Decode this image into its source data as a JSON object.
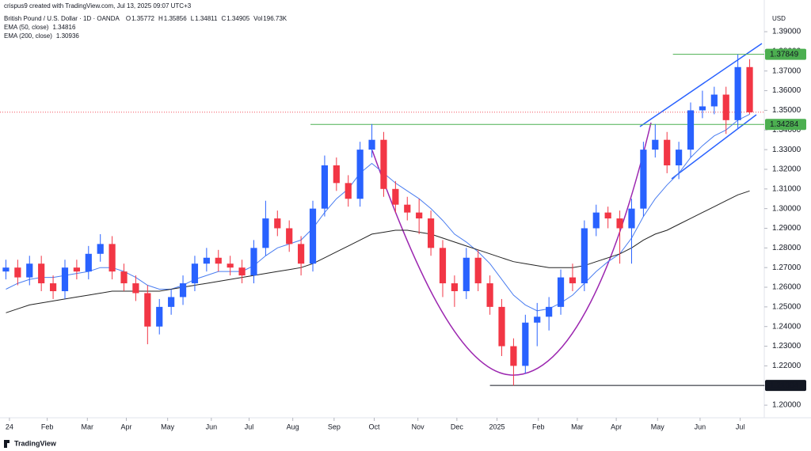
{
  "chart_data": {
    "type": "candlestick",
    "credit": "crispus9 created with TradingView.com, Jul 13, 2025 09:07 UTC+3",
    "title": "British Pound / U.S. Dollar · 1D · OANDA",
    "quote": [
      {
        "label": "O",
        "value": 1.35772
      },
      {
        "label": "H",
        "value": 1.35856
      },
      {
        "label": "L",
        "value": 1.34811
      },
      {
        "label": "C",
        "value": 1.34905
      },
      {
        "label": "Vol",
        "value": "196.73K"
      }
    ],
    "up_color": "#2962ff",
    "down_color": "#f23645",
    "open": [
      1.268,
      1.27,
      1.265,
      1.272,
      1.262,
      1.258,
      1.27,
      1.268,
      1.277,
      1.282,
      1.268,
      1.262,
      1.257,
      1.24,
      1.25,
      1.255,
      1.262,
      1.272,
      1.275,
      1.272,
      1.27,
      1.266,
      1.28,
      1.295,
      1.29,
      1.282,
      1.272,
      1.3,
      1.322,
      1.313,
      1.305,
      1.33,
      1.335,
      1.31,
      1.302,
      1.298,
      1.295,
      1.28,
      1.262,
      1.258,
      1.275,
      1.262,
      1.25,
      1.23,
      1.22,
      1.242,
      1.245,
      1.25,
      1.265,
      1.262,
      1.29,
      1.298,
      1.295,
      1.29,
      1.3,
      1.33,
      1.335,
      1.322,
      1.33,
      1.35,
      1.352,
      1.358,
      1.345,
      1.372
    ],
    "high": [
      1.274,
      1.274,
      1.276,
      1.276,
      1.266,
      1.274,
      1.274,
      1.281,
      1.287,
      1.286,
      1.272,
      1.266,
      1.261,
      1.254,
      1.259,
      1.266,
      1.276,
      1.28,
      1.279,
      1.276,
      1.274,
      1.284,
      1.304,
      1.299,
      1.294,
      1.286,
      1.304,
      1.327,
      1.326,
      1.317,
      1.334,
      1.343,
      1.339,
      1.314,
      1.306,
      1.305,
      1.299,
      1.284,
      1.266,
      1.28,
      1.279,
      1.266,
      1.254,
      1.234,
      1.246,
      1.252,
      1.255,
      1.269,
      1.272,
      1.294,
      1.302,
      1.301,
      1.299,
      1.305,
      1.334,
      1.343,
      1.339,
      1.334,
      1.354,
      1.36,
      1.362,
      1.362,
      1.3785,
      1.376
    ],
    "low": [
      1.264,
      1.261,
      1.261,
      1.258,
      1.254,
      1.254,
      1.264,
      1.264,
      1.273,
      1.264,
      1.258,
      1.253,
      1.231,
      1.236,
      1.246,
      1.251,
      1.258,
      1.268,
      1.268,
      1.266,
      1.262,
      1.262,
      1.276,
      1.286,
      1.278,
      1.266,
      1.268,
      1.296,
      1.309,
      1.301,
      1.301,
      1.326,
      1.306,
      1.298,
      1.294,
      1.287,
      1.276,
      1.255,
      1.25,
      1.254,
      1.258,
      1.246,
      1.225,
      1.21,
      1.216,
      1.23,
      1.238,
      1.246,
      1.258,
      1.258,
      1.286,
      1.29,
      1.272,
      1.272,
      1.296,
      1.326,
      1.318,
      1.315,
      1.326,
      1.346,
      1.348,
      1.338,
      1.341,
      1.348
    ],
    "close": [
      1.27,
      1.265,
      1.272,
      1.262,
      1.258,
      1.27,
      1.268,
      1.277,
      1.282,
      1.268,
      1.262,
      1.257,
      1.24,
      1.25,
      1.255,
      1.262,
      1.272,
      1.275,
      1.272,
      1.27,
      1.266,
      1.28,
      1.295,
      1.29,
      1.282,
      1.272,
      1.3,
      1.322,
      1.313,
      1.305,
      1.33,
      1.335,
      1.31,
      1.302,
      1.298,
      1.295,
      1.28,
      1.262,
      1.258,
      1.275,
      1.262,
      1.25,
      1.23,
      1.22,
      1.242,
      1.245,
      1.25,
      1.265,
      1.262,
      1.29,
      1.298,
      1.295,
      1.29,
      1.3,
      1.33,
      1.335,
      1.322,
      1.33,
      1.35,
      1.352,
      1.358,
      1.345,
      1.372,
      1.349
    ],
    "series": [
      {
        "name": "EMA (50, close)",
        "last": 1.34816,
        "color": "#4a7df0",
        "values": [
          1.259,
          1.262,
          1.264,
          1.265,
          1.265,
          1.266,
          1.267,
          1.268,
          1.27,
          1.27,
          1.268,
          1.265,
          1.261,
          1.259,
          1.259,
          1.261,
          1.264,
          1.266,
          1.268,
          1.268,
          1.268,
          1.271,
          1.276,
          1.28,
          1.282,
          1.284,
          1.29,
          1.298,
          1.305,
          1.31,
          1.318,
          1.323,
          1.318,
          1.313,
          1.309,
          1.305,
          1.3,
          1.294,
          1.287,
          1.283,
          1.278,
          1.272,
          1.264,
          1.256,
          1.251,
          1.248,
          1.249,
          1.252,
          1.256,
          1.262,
          1.268,
          1.273,
          1.277,
          1.285,
          1.296,
          1.305,
          1.312,
          1.318,
          1.326,
          1.332,
          1.337,
          1.34,
          1.345,
          1.348
        ]
      },
      {
        "name": "EMA (200, close)",
        "last": 1.30936,
        "color": "#222222",
        "values": [
          1.247,
          1.249,
          1.251,
          1.252,
          1.253,
          1.254,
          1.255,
          1.256,
          1.257,
          1.258,
          1.258,
          1.258,
          1.258,
          1.258,
          1.259,
          1.26,
          1.261,
          1.262,
          1.263,
          1.264,
          1.265,
          1.266,
          1.267,
          1.268,
          1.269,
          1.27,
          1.272,
          1.275,
          1.278,
          1.281,
          1.284,
          1.287,
          1.288,
          1.289,
          1.289,
          1.288,
          1.287,
          1.285,
          1.283,
          1.281,
          1.279,
          1.277,
          1.275,
          1.273,
          1.272,
          1.271,
          1.27,
          1.27,
          1.27,
          1.271,
          1.273,
          1.275,
          1.277,
          1.28,
          1.284,
          1.287,
          1.289,
          1.292,
          1.295,
          1.298,
          1.301,
          1.304,
          1.307,
          1.309
        ]
      }
    ],
    "ylabel": "USD",
    "ylim": [
      1.1948,
      1.4021
    ],
    "yticks": [
      {
        "value": 1.2,
        "label": "1.20000"
      },
      {
        "value": 1.21,
        "label": "1.21000"
      },
      {
        "value": 1.22,
        "label": "1.22000"
      },
      {
        "value": 1.23,
        "label": "1.23000"
      },
      {
        "value": 1.24,
        "label": "1.24000"
      },
      {
        "value": 1.25,
        "label": "1.25000"
      },
      {
        "value": 1.26,
        "label": "1.26000"
      },
      {
        "value": 1.27,
        "label": "1.27000"
      },
      {
        "value": 1.28,
        "label": "1.28000"
      },
      {
        "value": 1.29,
        "label": "1.29000"
      },
      {
        "value": 1.3,
        "label": "1.30000"
      },
      {
        "value": 1.31,
        "label": "1.31000"
      },
      {
        "value": 1.32,
        "label": "1.32000"
      },
      {
        "value": 1.33,
        "label": "1.33000"
      },
      {
        "value": 1.34,
        "label": "1.34000"
      },
      {
        "value": 1.35,
        "label": "1.35000"
      },
      {
        "value": 1.36,
        "label": "1.36000"
      },
      {
        "value": 1.37,
        "label": "1.37000"
      },
      {
        "value": 1.38,
        "label": "1.38000"
      },
      {
        "value": 1.39,
        "label": "1.39000"
      }
    ],
    "xlim": [
      0,
      64
    ],
    "xticks": [
      {
        "value": 0.8,
        "label": "24"
      },
      {
        "value": 4.0,
        "label": "Feb"
      },
      {
        "value": 7.4,
        "label": "Mar"
      },
      {
        "value": 10.7,
        "label": "Apr"
      },
      {
        "value": 14.2,
        "label": "May"
      },
      {
        "value": 17.9,
        "label": "Jun"
      },
      {
        "value": 21.1,
        "label": "Jul"
      },
      {
        "value": 24.8,
        "label": "Aug"
      },
      {
        "value": 28.3,
        "label": "Sep"
      },
      {
        "value": 31.7,
        "label": "Oct"
      },
      {
        "value": 35.4,
        "label": "Nov"
      },
      {
        "value": 38.7,
        "label": "Dec"
      },
      {
        "value": 42.1,
        "label": "2025"
      },
      {
        "value": 45.6,
        "label": "Feb"
      },
      {
        "value": 48.9,
        "label": "Mar"
      },
      {
        "value": 52.2,
        "label": "Apr"
      },
      {
        "value": 55.7,
        "label": "May"
      },
      {
        "value": 59.3,
        "label": "Jun"
      },
      {
        "value": 62.7,
        "label": "Jul"
      }
    ],
    "levels": [
      {
        "value": 1.37849,
        "color": "#4caf50"
      },
      {
        "value": 1.34284,
        "color": "#4caf50"
      },
      {
        "value": 1.21004,
        "color": "#131722"
      }
    ],
    "brand": "TradingView"
  }
}
